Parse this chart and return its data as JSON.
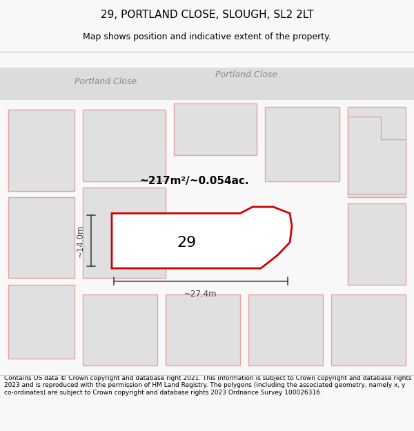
{
  "title": "29, PORTLAND CLOSE, SLOUGH, SL2 2LT",
  "subtitle": "Map shows position and indicative extent of the property.",
  "footer": "Contains OS data © Crown copyright and database right 2021. This information is subject to Crown copyright and database rights 2023 and is reproduced with the permission of HM Land Registry. The polygons (including the associated geometry, namely x, y co-ordinates) are subject to Crown copyright and database rights 2023 Ordnance Survey 100026316.",
  "area_label": "~217m²/~0.054ac.",
  "number_label": "29",
  "dim_width": "~27.4m",
  "dim_height": "~14.0m",
  "road_label_left": "Portland Close",
  "road_label_right": "Portland Close",
  "bg_color": "#f5f5f5",
  "map_bg": "#ffffff",
  "plot_fill": "#ffffff",
  "plot_edge_color": "#cc0000",
  "neighbor_fill": "#e0e0e0",
  "neighbor_edge": "#e8a0a0",
  "road_color": "#d0d0d0",
  "dim_color": "#404040",
  "title_fontsize": 11,
  "subtitle_fontsize": 9,
  "footer_fontsize": 6.5
}
